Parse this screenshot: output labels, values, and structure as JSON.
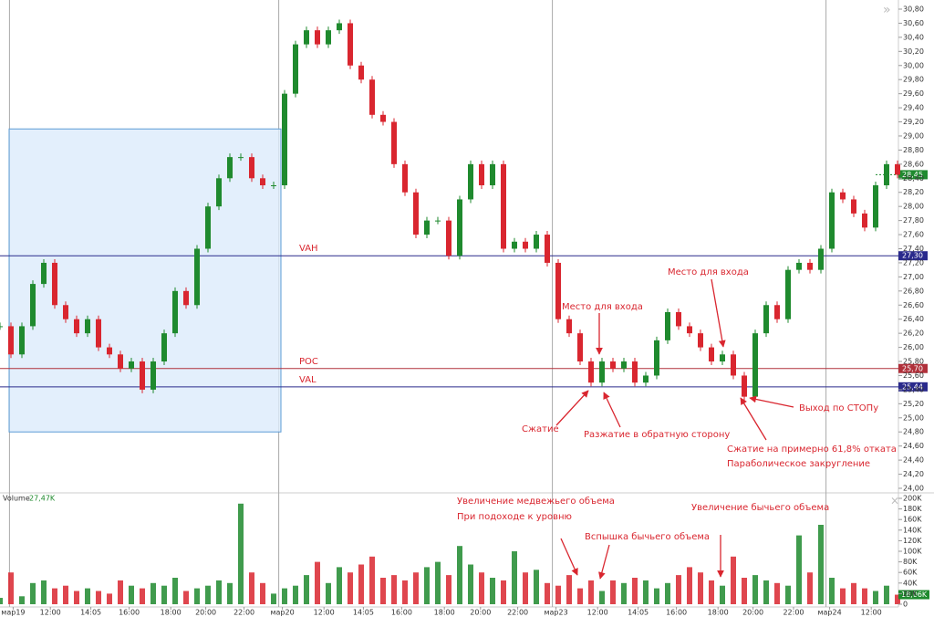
{
  "chart_data": [
    {
      "type": "candle",
      "x": [
        0,
        1,
        2,
        3,
        4,
        5,
        6,
        7,
        8,
        9,
        10,
        11,
        12,
        13,
        14,
        15,
        16,
        17,
        18,
        19,
        20,
        21,
        22,
        23,
        24,
        25,
        26,
        27,
        28,
        29,
        30,
        31,
        32,
        33,
        34,
        35,
        36,
        37,
        38,
        39,
        40,
        41,
        42,
        43,
        44,
        45,
        46,
        47,
        48,
        49,
        50,
        51,
        52,
        53,
        54,
        55,
        56,
        57,
        58,
        59,
        60,
        61,
        62,
        63,
        64,
        65,
        66,
        67,
        68,
        69,
        70,
        71,
        72,
        73,
        74,
        75,
        76,
        77,
        78,
        79,
        80,
        81,
        82
      ],
      "values": [
        26.3,
        25.9,
        26.3,
        26.9,
        27.2,
        26.6,
        26.4,
        26.2,
        26.4,
        26.0,
        25.9,
        25.7,
        25.8,
        25.4,
        25.8,
        26.2,
        26.8,
        26.6,
        27.4,
        28.0,
        28.4,
        28.7,
        28.7,
        28.4,
        28.3,
        28.3,
        29.6,
        30.3,
        30.5,
        30.3,
        30.5,
        30.6,
        30.0,
        29.8,
        29.3,
        29.2,
        28.6,
        28.2,
        27.6,
        27.8,
        27.8,
        27.3,
        28.1,
        28.6,
        28.3,
        28.6,
        27.4,
        27.5,
        27.4,
        27.6,
        27.2,
        26.4,
        26.2,
        25.8,
        25.5,
        25.8,
        25.7,
        25.8,
        25.5,
        25.6,
        26.1,
        26.5,
        26.3,
        26.2,
        26.0,
        25.8,
        25.9,
        25.6,
        25.3,
        26.2,
        26.6,
        26.4,
        27.1,
        27.2,
        27.1,
        27.4,
        28.2,
        28.1,
        27.9,
        27.7,
        28.3,
        28.6,
        28.45
      ],
      "up_color": "#1f8a2e",
      "down_color": "#d9262f",
      "xlim": [
        0,
        82
      ],
      "xticks": [
        {
          "value": 1.2,
          "label": "мар19"
        },
        {
          "value": 4.6,
          "label": "12:00"
        },
        {
          "value": 8.3,
          "label": "14:05"
        },
        {
          "value": 11.8,
          "label": "16:00"
        },
        {
          "value": 15.6,
          "label": "18:00"
        },
        {
          "value": 18.8,
          "label": "20:00"
        },
        {
          "value": 22.3,
          "label": "22:00"
        },
        {
          "value": 25.8,
          "label": "мар20"
        },
        {
          "value": 29.6,
          "label": "12:00"
        },
        {
          "value": 33.2,
          "label": "14:05"
        },
        {
          "value": 36.7,
          "label": "16:00"
        },
        {
          "value": 40.6,
          "label": "18:00"
        },
        {
          "value": 43.9,
          "label": "20:00"
        },
        {
          "value": 47.3,
          "label": "22:00"
        },
        {
          "value": 50.8,
          "label": "мар23"
        },
        {
          "value": 54.6,
          "label": "12:00"
        },
        {
          "value": 58.3,
          "label": "14:05"
        },
        {
          "value": 61.8,
          "label": "16:00"
        },
        {
          "value": 65.6,
          "label": "18:00"
        },
        {
          "value": 68.8,
          "label": "20:00"
        },
        {
          "value": 72.5,
          "label": "22:00"
        },
        {
          "value": 75.8,
          "label": "мар24"
        },
        {
          "value": 79.6,
          "label": "12:00"
        }
      ],
      "ylim": [
        24.0,
        30.8
      ],
      "yticks": [
        {
          "value": 24.0,
          "label": "24,00"
        },
        {
          "value": 24.2,
          "label": "24,20"
        },
        {
          "value": 24.4,
          "label": "24,40"
        },
        {
          "value": 24.6,
          "label": "24,60"
        },
        {
          "value": 24.8,
          "label": "24,80"
        },
        {
          "value": 25.0,
          "label": "25,00"
        },
        {
          "value": 25.2,
          "label": "25,20"
        },
        {
          "value": 25.4,
          "label": "25,40"
        },
        {
          "value": 25.6,
          "label": "25,60"
        },
        {
          "value": 25.8,
          "label": "25,80"
        },
        {
          "value": 26.0,
          "label": "26,00"
        },
        {
          "value": 26.2,
          "label": "26,20"
        },
        {
          "value": 26.4,
          "label": "26,40"
        },
        {
          "value": 26.6,
          "label": "26,60"
        },
        {
          "value": 26.8,
          "label": "26,80"
        },
        {
          "value": 27.0,
          "label": "27,00"
        },
        {
          "value": 27.2,
          "label": "27,20"
        },
        {
          "value": 27.4,
          "label": "27,40"
        },
        {
          "value": 27.6,
          "label": "27,60"
        },
        {
          "value": 27.8,
          "label": "27,80"
        },
        {
          "value": 28.0,
          "label": "28,00"
        },
        {
          "value": 28.2,
          "label": "28,20"
        },
        {
          "value": 28.4,
          "label": "28,40"
        },
        {
          "value": 28.6,
          "label": "28,60"
        },
        {
          "value": 28.8,
          "label": "28,80"
        },
        {
          "value": 29.0,
          "label": "29,00"
        },
        {
          "value": 29.2,
          "label": "29,20"
        },
        {
          "value": 29.4,
          "label": "29,40"
        },
        {
          "value": 29.6,
          "label": "29,60"
        },
        {
          "value": 29.8,
          "label": "29,80"
        },
        {
          "value": 30.0,
          "label": "30,00"
        },
        {
          "value": 30.2,
          "label": "30,20"
        },
        {
          "value": 30.4,
          "label": "30,40"
        },
        {
          "value": 30.6,
          "label": "30,60"
        },
        {
          "value": 30.8,
          "label": "30,80"
        }
      ],
      "levels": [
        {
          "name": "VAH",
          "value": 27.3,
          "label": "27,30",
          "color": "#2a2a8c"
        },
        {
          "name": "POC",
          "value": 25.7,
          "label": "25,70",
          "color": "#b0303a"
        },
        {
          "name": "VAL",
          "value": 25.44,
          "label": "25,44",
          "color": "#2a2a8c"
        }
      ],
      "last_price": {
        "value": 28.45,
        "label": "28,45"
      },
      "profile_range": [
        24.8,
        29.1
      ],
      "annotations": [
        "Место для входа",
        "Место для входа",
        "Сжатие",
        "Разжатие в обратную сторону",
        "Сжатие на примерно 61,8% отката",
        "Параболическое закругление",
        "Выход по СТОПу"
      ]
    },
    {
      "type": "volume",
      "title": "Volume",
      "current_label": "27,47K",
      "values": [
        12000,
        60000,
        15000,
        40000,
        45000,
        30000,
        35000,
        25000,
        30000,
        25000,
        20000,
        45000,
        35000,
        30000,
        40000,
        35000,
        50000,
        25000,
        30000,
        35000,
        45000,
        40000,
        190000,
        60000,
        40000,
        20000,
        30000,
        35000,
        55000,
        80000,
        40000,
        70000,
        60000,
        75000,
        90000,
        50000,
        55000,
        45000,
        60000,
        70000,
        80000,
        55000,
        110000,
        75000,
        60000,
        50000,
        45000,
        100000,
        60000,
        65000,
        40000,
        35000,
        55000,
        30000,
        45000,
        25000,
        45000,
        40000,
        50000,
        45000,
        30000,
        40000,
        55000,
        70000,
        60000,
        45000,
        35000,
        90000,
        50000,
        55000,
        45000,
        40000,
        35000,
        130000,
        60000,
        150000,
        50000,
        30000,
        40000,
        30000,
        25000,
        35000,
        18060
      ],
      "last": {
        "value": 18060,
        "label": "18,06K"
      },
      "ylim": [
        0,
        200000
      ],
      "yticks": [
        0,
        {
          "value": 20000,
          "label": "20K"
        },
        {
          "value": 40000,
          "label": "40K"
        },
        {
          "value": 60000,
          "label": "60K"
        },
        {
          "value": 80000,
          "label": "80K"
        },
        {
          "value": 100000,
          "label": "100K"
        },
        {
          "value": 120000,
          "label": "120K"
        },
        {
          "value": 140000,
          "label": "140K"
        },
        {
          "value": 160000,
          "label": "160K"
        },
        {
          "value": 180000,
          "label": "180K"
        },
        {
          "value": 200000,
          "label": "200K"
        }
      ],
      "annotations": [
        "Увеличение медвежьего объема",
        "При подоходе к уровню",
        "Вспышка бычьего объема",
        "Увеличение бычьего объема"
      ]
    }
  ]
}
